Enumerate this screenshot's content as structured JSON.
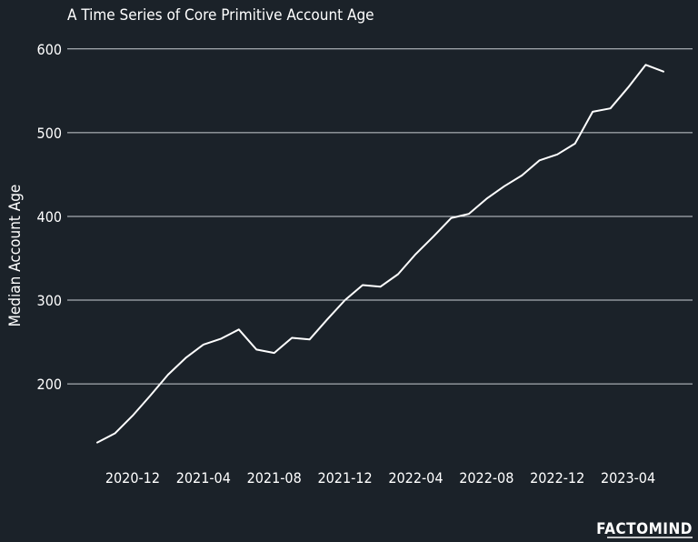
{
  "brand": "FACTOMIND",
  "colors": {
    "background": "#1b2229",
    "line": "#ffffff",
    "grid": "#c9ced3",
    "text": "#ffffff"
  },
  "chart_data": {
    "type": "line",
    "title": "A Time Series of Core Primitive Account Age",
    "xlabel": "",
    "ylabel": "Median Account Age",
    "ylim": [
      110,
      615
    ],
    "yticks": [
      200,
      300,
      400,
      500,
      600
    ],
    "grid": "horizontal",
    "legend": "none",
    "xticks": [
      "2020-12",
      "2021-04",
      "2021-08",
      "2021-12",
      "2022-04",
      "2022-08",
      "2022-12",
      "2023-04"
    ],
    "x": [
      "2020-10",
      "2020-11",
      "2020-12",
      "2021-01",
      "2021-02",
      "2021-03",
      "2021-04",
      "2021-05",
      "2021-06",
      "2021-07",
      "2021-08",
      "2021-09",
      "2021-10",
      "2021-11",
      "2021-12",
      "2022-01",
      "2022-02",
      "2022-03",
      "2022-04",
      "2022-05",
      "2022-06",
      "2022-07",
      "2022-08",
      "2022-09",
      "2022-10",
      "2022-11",
      "2022-12",
      "2023-01",
      "2023-02",
      "2023-03",
      "2023-04",
      "2023-05",
      "2023-06"
    ],
    "series": [
      {
        "values": [
          130,
          141,
          162,
          186,
          211,
          231,
          247,
          254,
          265,
          241,
          237,
          255,
          253,
          277,
          300,
          318,
          316,
          331,
          355,
          376,
          398,
          403,
          421,
          436,
          449,
          467,
          474,
          487,
          525,
          529,
          554,
          581,
          573
        ]
      }
    ]
  }
}
